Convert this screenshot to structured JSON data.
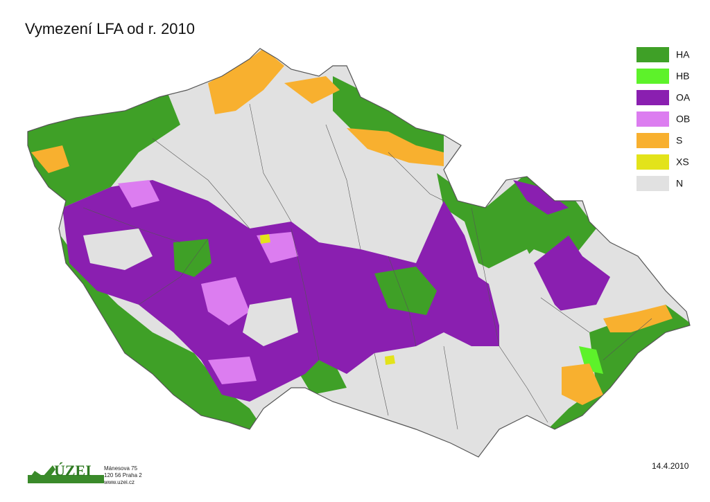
{
  "title": "Vymezení LFA od r. 2010",
  "legend": [
    {
      "label": "HA",
      "color": "#3fa027"
    },
    {
      "label": "HB",
      "color": "#5df22a"
    },
    {
      "label": "OA",
      "color": "#8a1fb0"
    },
    {
      "label": "OB",
      "color": "#dc7df0"
    },
    {
      "label": "S",
      "color": "#f8b02f"
    },
    {
      "label": "XS",
      "color": "#e3e31a"
    },
    {
      "label": "N",
      "color": "#e1e1e1"
    }
  ],
  "logo": {
    "name": "ÚZEI",
    "address": [
      "Mánesova 75",
      "120 56 Praha 2",
      "www.uzei.cz"
    ]
  },
  "date": "14.4.2010"
}
